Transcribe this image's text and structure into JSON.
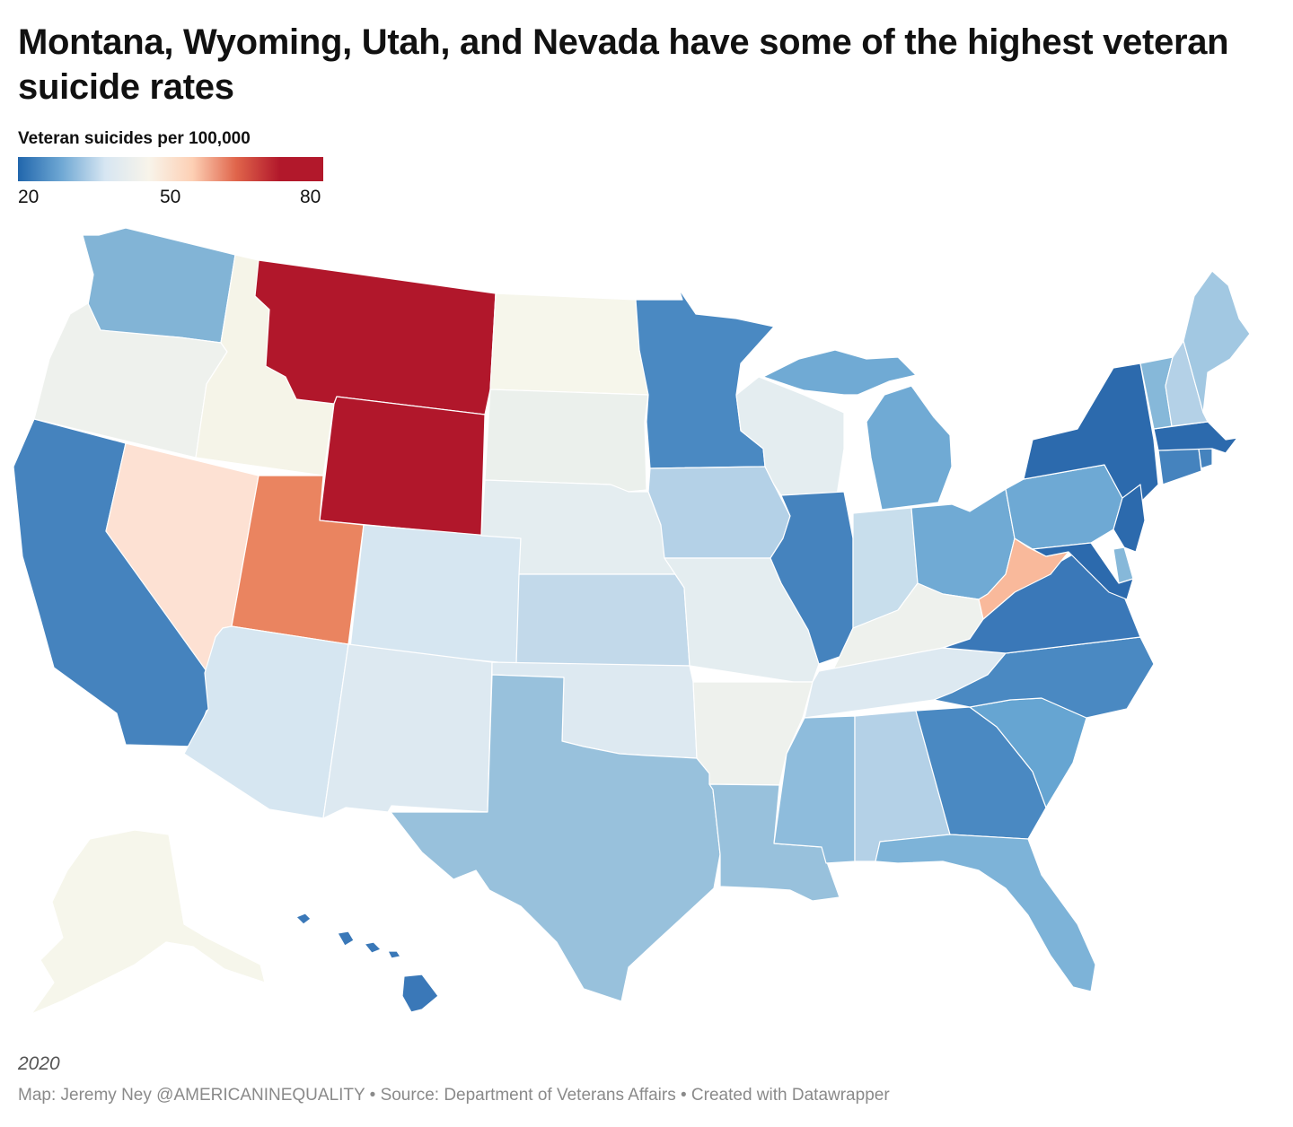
{
  "title": "Montana, Wyoming, Utah, and Nevada have some of the highest veteran suicide rates",
  "legend": {
    "title": "Veteran suicides per 100,000",
    "min_label": "20",
    "mid_label": "50",
    "max_label": "80",
    "min": 20,
    "mid": 50,
    "max": 80,
    "colors": [
      "#2166ac",
      "#6fa8d4",
      "#d7e6f2",
      "#f8f4ea",
      "#fdd0b5",
      "#e0654b",
      "#b2182b",
      "#b2182b"
    ]
  },
  "year": "2020",
  "footer": "Map: Jeremy Ney @AMERICANINEQUALITY • Source: Department of Veterans Affairs • Created with Datawrapper",
  "map_colors": {
    "Washington": "#82b4d6",
    "Oregon": "#eef1ed",
    "Idaho": "#f5f4e8",
    "Montana": "#b1172b",
    "Wyoming": "#b1172b",
    "California": "#4583be",
    "Nevada": "#fde1d3",
    "Utah": "#ea8460",
    "Arizona": "#d6e6f1",
    "Colorado": "#d6e6f1",
    "New Mexico": "#dde9f1",
    "North Dakota": "#f6f6eb",
    "South Dakota": "#ebf0ec",
    "Nebraska": "#e4edf0",
    "Kansas": "#c2d9ea",
    "Oklahoma": "#dde9f1",
    "Texas": "#98c1dc",
    "Minnesota": "#4a89c2",
    "Iowa": "#b4d1e7",
    "Missouri": "#e4edf0",
    "Arkansas": "#eef1ed",
    "Louisiana": "#98c1dc",
    "Wisconsin": "#e4edf0",
    "Illinois": "#4583be",
    "Michigan": "#70aad4",
    "Indiana": "#c8deec",
    "Ohio": "#70aad4",
    "Kentucky": "#eef1ed",
    "Tennessee": "#dde9f1",
    "Mississippi": "#8ebcdc",
    "Alabama": "#b4d1e7",
    "Georgia": "#4a89c2",
    "Florida": "#7db3d8",
    "South Carolina": "#66a5d2",
    "North Carolina": "#4a89c2",
    "Virginia": "#3a78b8",
    "West Virginia": "#f9b99b",
    "Pennsylvania": "#6ea9d4",
    "New York": "#2c6aad",
    "Vermont": "#86b8d9",
    "New Hampshire": "#b4d1e7",
    "Maine": "#a2c8e2",
    "Massachusetts": "#2c6aad",
    "Rhode Island": "#4583be",
    "Connecticut": "#4583be",
    "New Jersey": "#2c6aad",
    "Delaware": "#86b8d9",
    "Maryland": "#2c6aad",
    "Alaska": "#f6f6eb",
    "Hawaii": "#3a78b8"
  }
}
